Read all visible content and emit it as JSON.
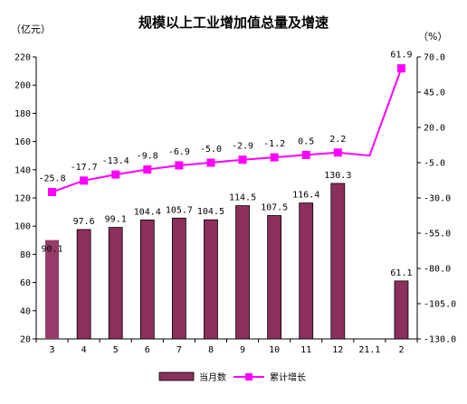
{
  "chart_data": {
    "type": "bar",
    "title": "规模以上工业增加值总量及增速",
    "left_unit": "（亿元）",
    "right_unit": "（%）",
    "categories": [
      "3",
      "4",
      "5",
      "6",
      "7",
      "8",
      "9",
      "10",
      "11",
      "12",
      "21.1",
      "2"
    ],
    "left_axis": {
      "min": 20,
      "max": 220,
      "step": 20
    },
    "right_axis": {
      "min": -130,
      "max": 70,
      "step": 25
    },
    "bar_series": {
      "name": "当月数",
      "color": "#8B2F5C",
      "highlight_color": "#963A6B",
      "values": [
        90.1,
        97.6,
        99.1,
        104.4,
        105.7,
        104.5,
        114.5,
        107.5,
        116.4,
        130.3,
        null,
        61.1
      ],
      "labels": [
        "90.1",
        "97.6",
        "99.1",
        "104.4",
        "105.7",
        "104.5",
        "114.5",
        "107.5",
        "116.4",
        "130.3",
        "",
        "61.1"
      ]
    },
    "line_series": {
      "name": "累计增长",
      "color": "#FF00FF",
      "values": [
        -25.8,
        -17.7,
        -13.4,
        -9.8,
        -6.9,
        -5.0,
        -2.9,
        -1.2,
        0.5,
        2.2,
        0.0,
        61.9
      ],
      "labels": [
        "-25.8",
        "-17.7",
        "-13.4",
        "-9.8",
        "-6.9",
        "-5.0",
        "-2.9",
        "-1.2",
        "0.5",
        "2.2",
        "",
        "61.9"
      ],
      "markers": [
        true,
        true,
        true,
        true,
        true,
        true,
        true,
        true,
        true,
        true,
        false,
        true
      ]
    },
    "left_ticks": [
      "20",
      "40",
      "60",
      "80",
      "100",
      "120",
      "140",
      "160",
      "180",
      "200",
      "220"
    ],
    "right_ticks": [
      "-130.0",
      "-105.0",
      "-80.0",
      "-55.0",
      "-30.0",
      "-5.0",
      "20.0",
      "45.0",
      "70.0"
    ],
    "legend_position": "bottom-center",
    "grid": false
  }
}
